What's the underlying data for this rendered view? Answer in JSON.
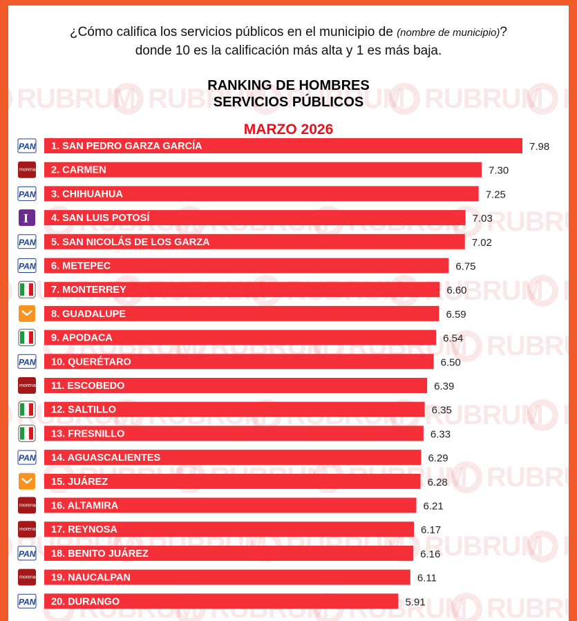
{
  "question": {
    "part1": "¿Cómo califica los servicios públicos en el municipio de ",
    "italic": "(nombre de municipio)",
    "part2": "? donde 10 es la calificación más alta y 1 es más baja."
  },
  "watermark": "RUBRUM",
  "chart_data": {
    "type": "bar",
    "orientation": "horizontal",
    "title_line1": "RANKING DE HOMBRES",
    "title_line2": "SERVICIOS PÚBLICOS",
    "subtitle": "MARZO 2026",
    "categories": [
      "1. SAN PEDRO GARZA GARCÍA",
      "2. CARMEN",
      "3. CHIHUAHUA",
      "4. SAN LUIS POTOSÍ",
      "5. SAN NICOLÁS DE LOS GARZA",
      "6. METEPEC",
      "7. MONTERREY",
      "8. GUADALUPE",
      "9. APODACA",
      "10. QUERÉTARO",
      "11. ESCOBEDO",
      "12. SALTILLO",
      "13. FRESNILLO",
      "14. AGUASCALIENTES",
      "15. JUÁREZ",
      "16. ALTAMIRA",
      "17. REYNOSA",
      "18. BENITO JUÁREZ",
      "19. NAUCALPAN",
      "20. DURANGO"
    ],
    "values": [
      7.98,
      7.3,
      7.25,
      7.03,
      7.02,
      6.75,
      6.6,
      6.59,
      6.54,
      6.5,
      6.39,
      6.35,
      6.33,
      6.29,
      6.28,
      6.21,
      6.17,
      6.16,
      6.11,
      5.91
    ],
    "value_labels": [
      "7.98",
      "7.30",
      "7.25",
      "7.03",
      "7.02",
      "6.75",
      "6.60",
      "6.59",
      "6.54",
      "6.50",
      "6.39",
      "6.35",
      "6.33",
      "6.29",
      "6.28",
      "6.21",
      "6.17",
      "6.16",
      "6.11",
      "5.91"
    ],
    "parties": [
      "PAN",
      "MORENA",
      "PAN",
      "INDEPENDIENTE",
      "PAN",
      "PAN",
      "PRI",
      "MC",
      "PRI",
      "PAN",
      "MORENA",
      "PRI",
      "PRI",
      "PAN",
      "MC",
      "MORENA",
      "MORENA",
      "PAN",
      "MORENA",
      "PAN"
    ],
    "bar_color": "#f42f37",
    "party_colors": {
      "PAN": "#1b3f94",
      "MORENA": "#a5181a",
      "PRI": "#1a9a3c",
      "MC": "#f7931e",
      "INDEPENDIENTE": "#6b2c91"
    },
    "logo_text": {
      "PAN": "PAN",
      "MORENA": "morena",
      "INDEPENDIENTE": "I"
    }
  }
}
